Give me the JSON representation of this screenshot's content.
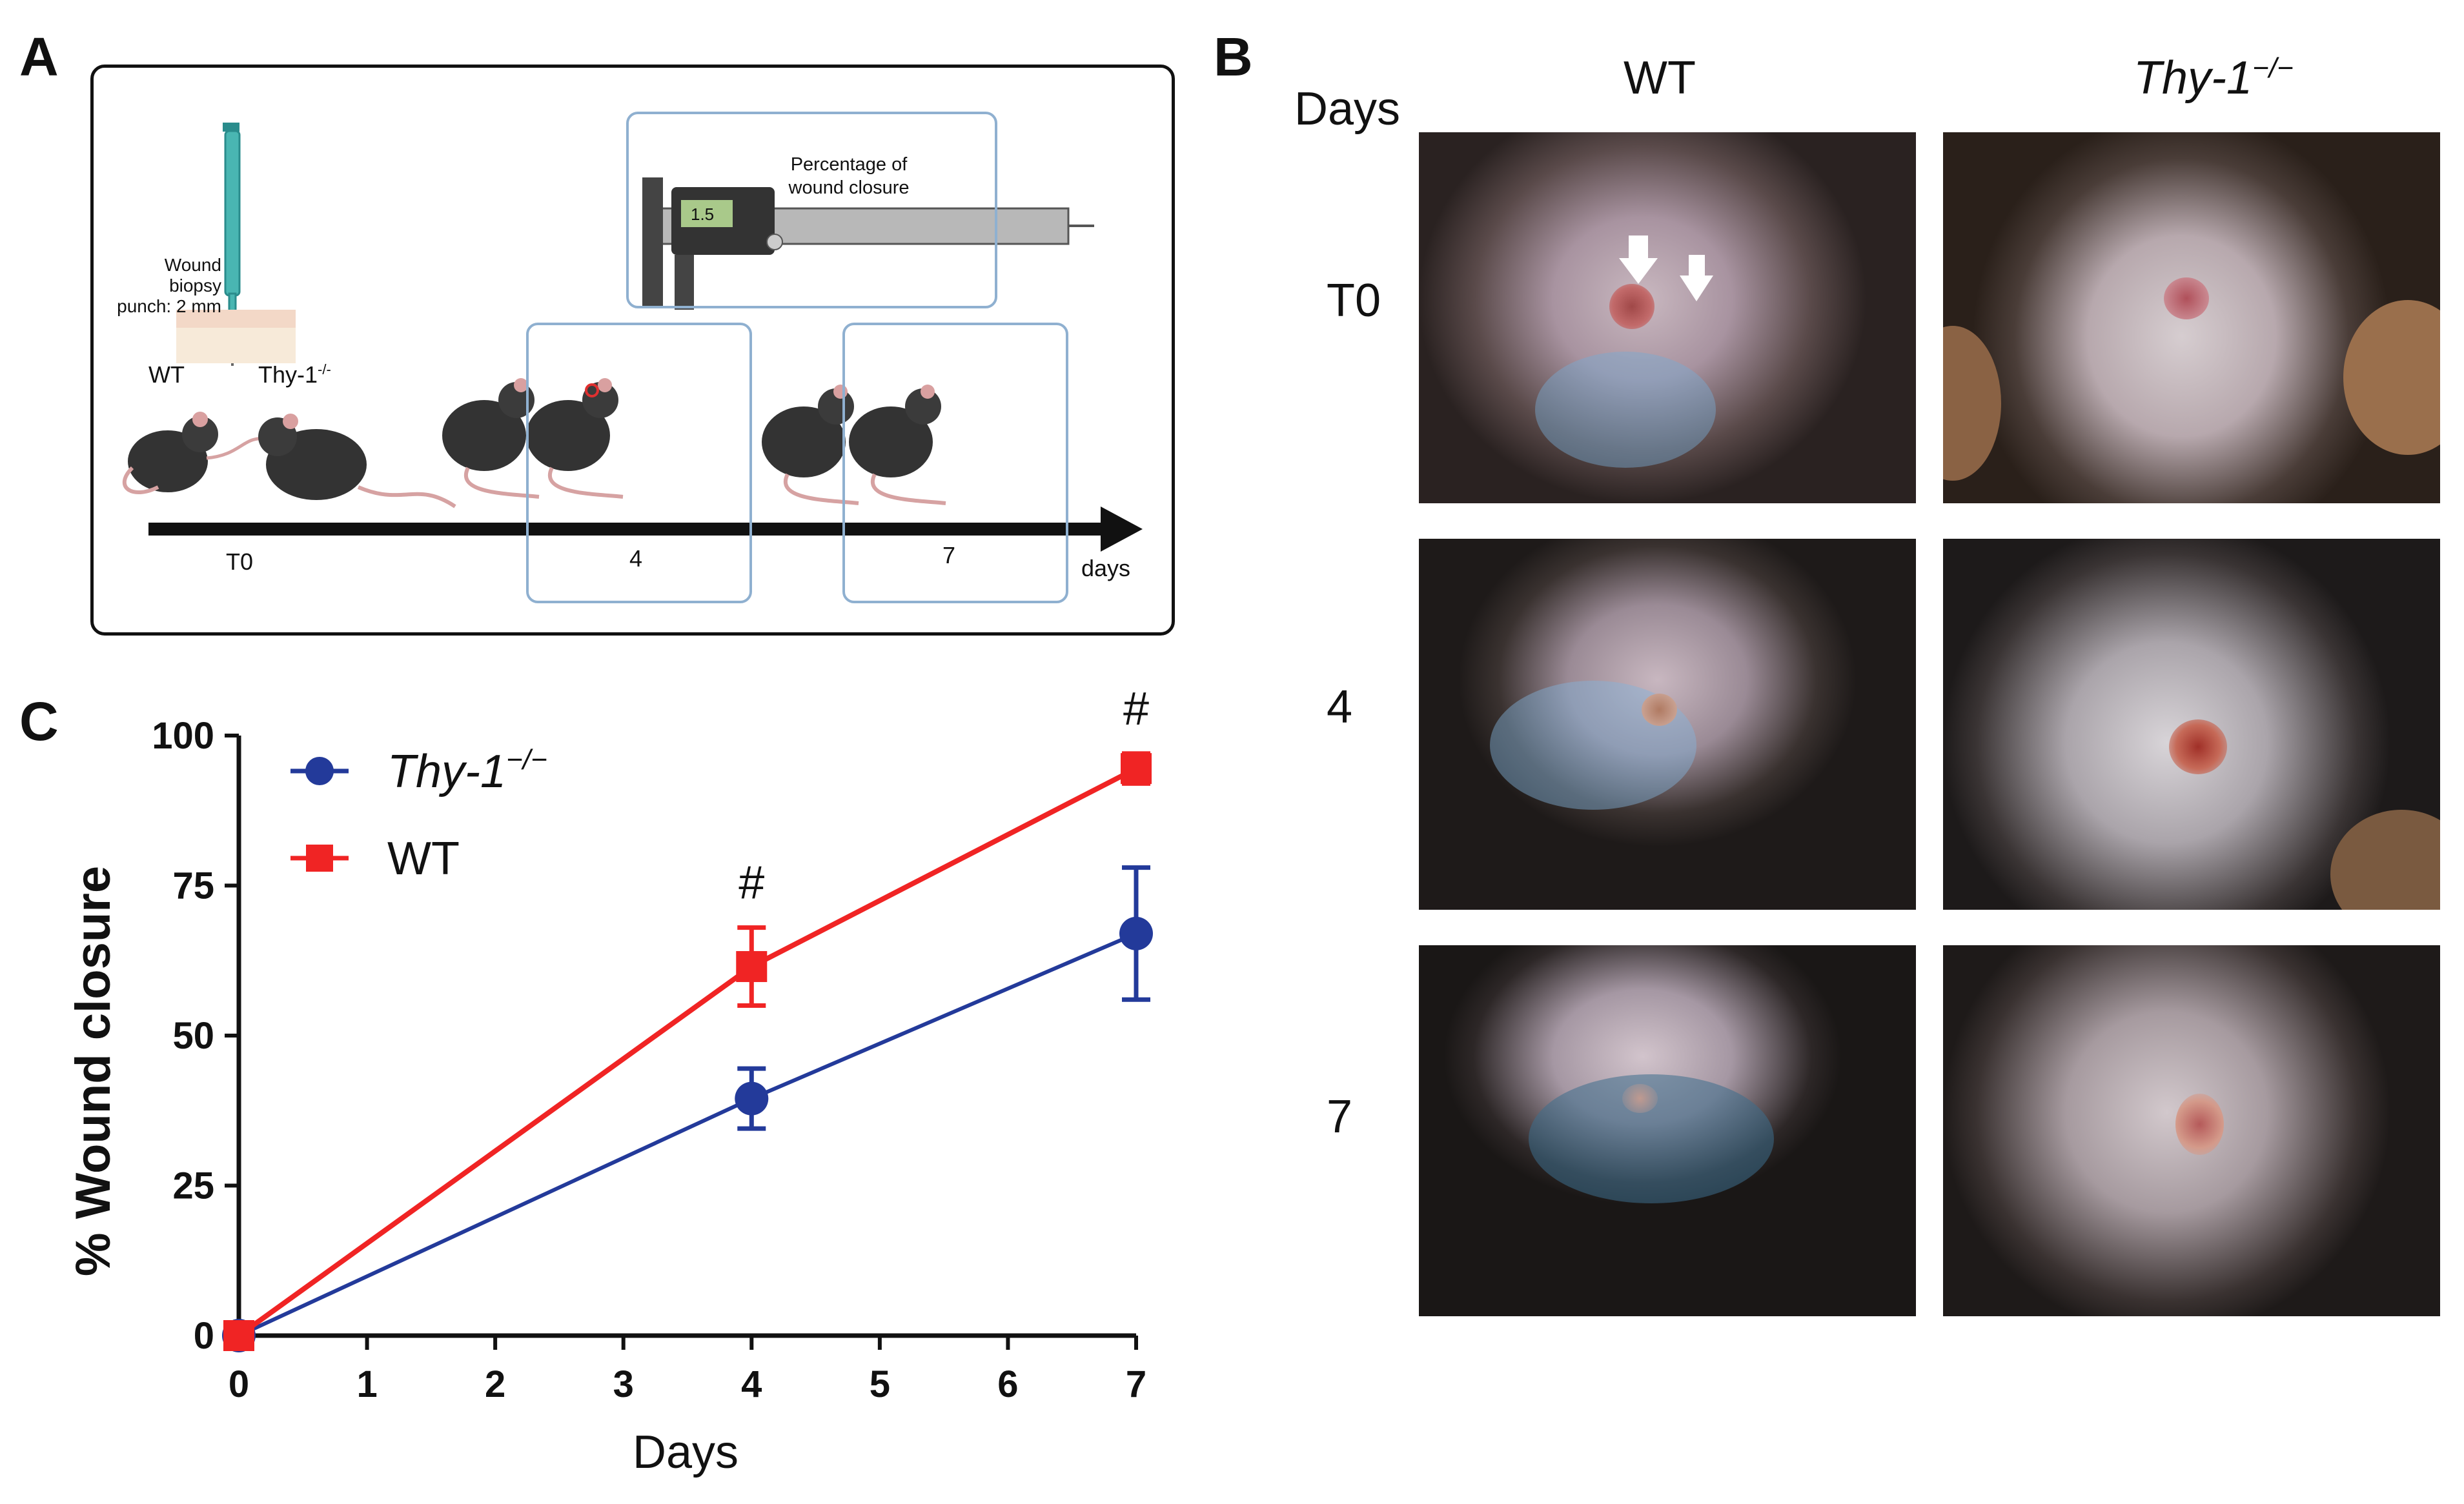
{
  "panel_a": {
    "letter": "A",
    "punch_label_1": "Wound biopsy",
    "punch_label_2": "punch: 2 mm",
    "caliper_title_1": "Percentage of",
    "caliper_title_2": "wound closure",
    "caliper_reading": "1.5",
    "wt_label": "WT",
    "ko_label": "Thy-1",
    "ko_superscript": "-/-",
    "timeline": [
      "T0",
      "4",
      "7"
    ],
    "timeline_unit": "days"
  },
  "panel_b": {
    "letter": "B",
    "days_header": "Days",
    "col_wt": "WT",
    "col_ko": "Thy-1",
    "col_ko_sup": "−/−",
    "rows": [
      "T0",
      "4",
      "7"
    ]
  },
  "panel_c": {
    "letter": "C"
  },
  "chart_data": {
    "type": "line",
    "title": "",
    "xlabel": "Days",
    "ylabel": "% Wound closure",
    "x_ticks": [
      "0",
      "1",
      "2",
      "3",
      "4",
      "5",
      "6",
      "7"
    ],
    "y_ticks": [
      "0",
      "25",
      "50",
      "75",
      "100"
    ],
    "xlim": [
      0,
      7
    ],
    "ylim": [
      0,
      100
    ],
    "series": [
      {
        "name": "Thy-1",
        "name_sup": "−/−",
        "color": "#233a9a",
        "marker": "circle",
        "x": [
          0,
          4,
          7
        ],
        "y": [
          0,
          39.5,
          67
        ],
        "err": [
          0,
          5,
          11
        ]
      },
      {
        "name": "WT",
        "color": "#f02424",
        "marker": "square",
        "x": [
          0,
          4,
          7
        ],
        "y": [
          0,
          61.5,
          94.5
        ],
        "err": [
          0,
          6.5,
          2.5
        ]
      }
    ],
    "annotations": [
      {
        "text": "#",
        "x": 4,
        "y": 61.5
      },
      {
        "text": "#",
        "x": 7,
        "y": 94.5
      }
    ]
  }
}
